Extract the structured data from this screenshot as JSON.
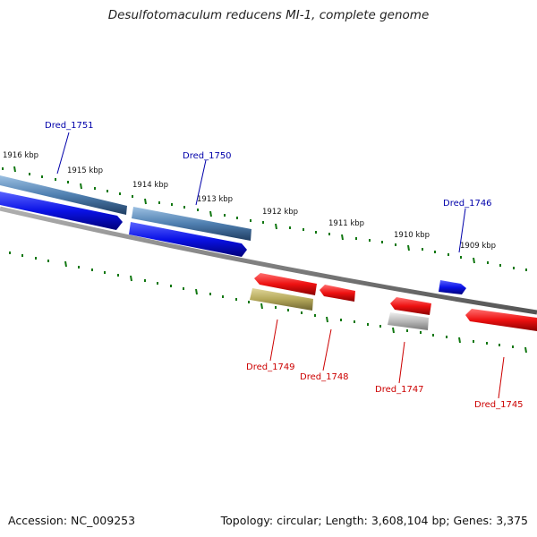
{
  "title": "Desulfotomaculum reducens MI-1, complete genome",
  "footer": {
    "accession": "Accession: NC_009253",
    "summary": "Topology: circular; Length: 3,608,104 bp; Genes: 3,375"
  },
  "ruler_labels": [
    "1916 kbp",
    "1915 kbp",
    "1914 kbp",
    "1913 kbp",
    "1912 kbp",
    "1911 kbp",
    "1910 kbp",
    "1909 kbp"
  ],
  "genes": [
    {
      "name": "Dred_1751",
      "strand": "plus"
    },
    {
      "name": "Dred_1750",
      "strand": "plus"
    },
    {
      "name": "Dred_1746",
      "strand": "plus"
    },
    {
      "name": "Dred_1749",
      "strand": "minus"
    },
    {
      "name": "Dred_1748",
      "strand": "minus"
    },
    {
      "name": "Dred_1747",
      "strand": "minus"
    },
    {
      "name": "Dred_1745",
      "strand": "minus"
    }
  ],
  "colors": {
    "plus_label": "#0000aa",
    "minus_label": "#cc0000",
    "tick": "#117711",
    "backbone": "#777777",
    "plus_gene": "#0a12e6",
    "plus_rna": "#4f7fb0",
    "minus_gene": "#ee1111",
    "minus_khaki": "#b4a85a",
    "minus_gray": "#b8b8b8"
  }
}
